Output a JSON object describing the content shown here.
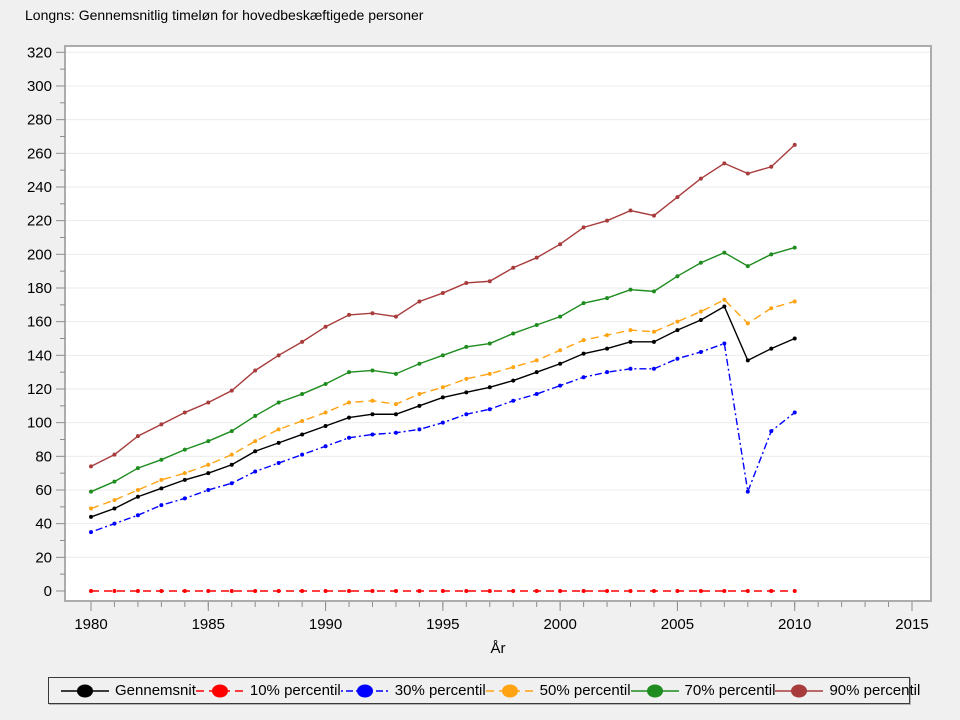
{
  "title": "Longns: Gennemsnitlig timeløn for hovedbeskæftigede personer",
  "chart_data": {
    "type": "line",
    "title": "Longns: Gennemsnitlig timeløn for hovedbeskæftigede personer",
    "xlabel": "År",
    "ylabel": "",
    "xlim": [
      1980,
      2015
    ],
    "ylim": [
      0,
      320
    ],
    "grid": "horizontal",
    "legend_position": "bottom",
    "x": [
      1980,
      1981,
      1982,
      1983,
      1984,
      1985,
      1986,
      1987,
      1988,
      1989,
      1990,
      1991,
      1992,
      1993,
      1994,
      1995,
      1996,
      1997,
      1998,
      1999,
      2000,
      2001,
      2002,
      2003,
      2004,
      2005,
      2006,
      2007,
      2008,
      2009,
      2010
    ],
    "xticks": [
      1980,
      1985,
      1990,
      1995,
      2000,
      2005,
      2010,
      2015
    ],
    "yticks": [
      0,
      20,
      40,
      60,
      80,
      100,
      120,
      140,
      160,
      180,
      200,
      220,
      240,
      260,
      280,
      300,
      320
    ],
    "series": [
      {
        "name": "Gennemsnit",
        "color": "#000000",
        "dash": "solid",
        "values": [
          44,
          49,
          56,
          61,
          66,
          70,
          75,
          83,
          88,
          93,
          98,
          103,
          105,
          105,
          110,
          115,
          118,
          121,
          125,
          130,
          135,
          141,
          144,
          148,
          148,
          155,
          161,
          169,
          137,
          144,
          150
        ]
      },
      {
        "name": "10% percentil",
        "color": "#ff0000",
        "dash": "dash",
        "values": [
          0,
          0,
          0,
          0,
          0,
          0,
          0,
          0,
          0,
          0,
          0,
          0,
          0,
          0,
          0,
          0,
          0,
          0,
          0,
          0,
          0,
          0,
          0,
          0,
          0,
          0,
          0,
          0,
          0,
          0,
          0
        ]
      },
      {
        "name": "30% percentil",
        "color": "#0000ff",
        "dash": "dashdot",
        "values": [
          35,
          40,
          45,
          51,
          55,
          60,
          64,
          71,
          76,
          81,
          86,
          91,
          93,
          94,
          96,
          100,
          105,
          108,
          113,
          117,
          122,
          127,
          130,
          132,
          132,
          138,
          142,
          147,
          59,
          95,
          106
        ]
      },
      {
        "name": "50% percentil",
        "color": "#ffa312",
        "dash": "dash",
        "values": [
          49,
          54,
          60,
          66,
          70,
          75,
          81,
          89,
          96,
          101,
          106,
          112,
          113,
          111,
          117,
          121,
          126,
          129,
          133,
          137,
          143,
          149,
          152,
          155,
          154,
          160,
          166,
          173,
          159,
          168,
          172
        ]
      },
      {
        "name": "70% percentil",
        "color": "#1e8c1e",
        "dash": "solid",
        "values": [
          59,
          65,
          73,
          78,
          84,
          89,
          95,
          104,
          112,
          117,
          123,
          130,
          131,
          129,
          135,
          140,
          145,
          147,
          153,
          158,
          163,
          171,
          174,
          179,
          178,
          187,
          195,
          201,
          193,
          200,
          204
        ]
      },
      {
        "name": "90% percentil",
        "color": "#a83c3c",
        "dash": "solid",
        "values": [
          74,
          81,
          92,
          99,
          106,
          112,
          119,
          131,
          140,
          148,
          157,
          164,
          165,
          163,
          172,
          177,
          183,
          184,
          192,
          198,
          206,
          216,
          220,
          226,
          223,
          234,
          245,
          254,
          248,
          252,
          265
        ]
      }
    ],
    "colors": {
      "background": "#f0f0f0",
      "plot_background": "#ffffff",
      "frame": "#acacac",
      "gridline": "#ebebeb",
      "tick": "#8c8c8c"
    }
  }
}
